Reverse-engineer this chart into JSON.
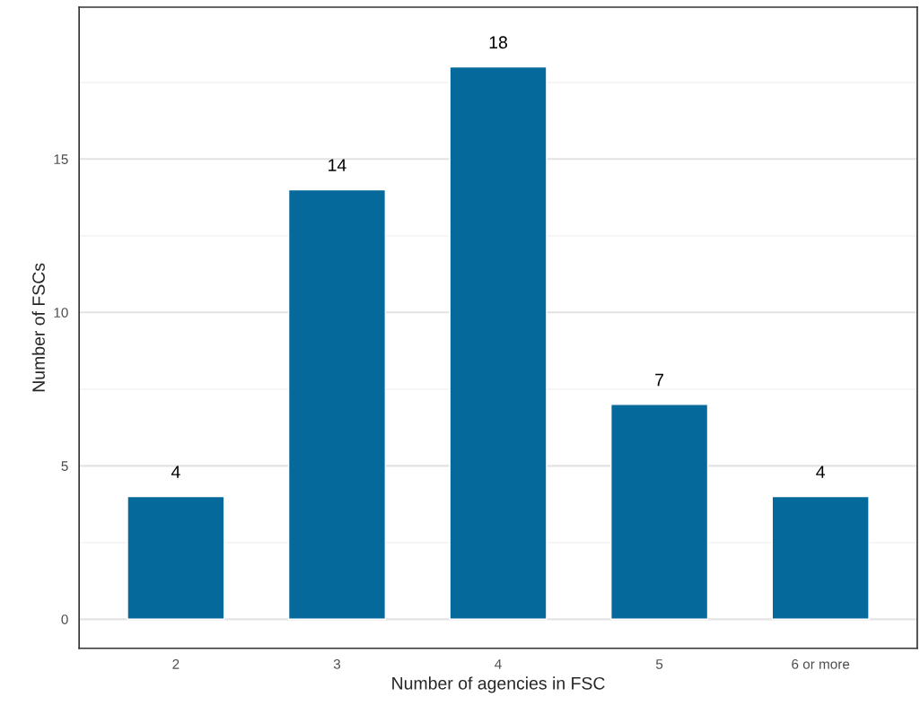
{
  "chart_data": {
    "type": "bar",
    "xlabel": "Number of agencies in FSC",
    "ylabel": "Number of FSCs",
    "categories": [
      "2",
      "3",
      "4",
      "5",
      "6 or more"
    ],
    "values": [
      4,
      14,
      18,
      7,
      4
    ],
    "color": "#05699b",
    "ylim": [
      -0.95,
      19.95
    ],
    "yticks": [
      0,
      {
        "value": 2.5,
        "label": null
      },
      5,
      {
        "value": 7.5,
        "label": null
      },
      10,
      {
        "value": 12.5,
        "label": null
      },
      15,
      {
        "value": 17.5,
        "label": null
      }
    ],
    "grid": "y",
    "data_labels": true
  }
}
